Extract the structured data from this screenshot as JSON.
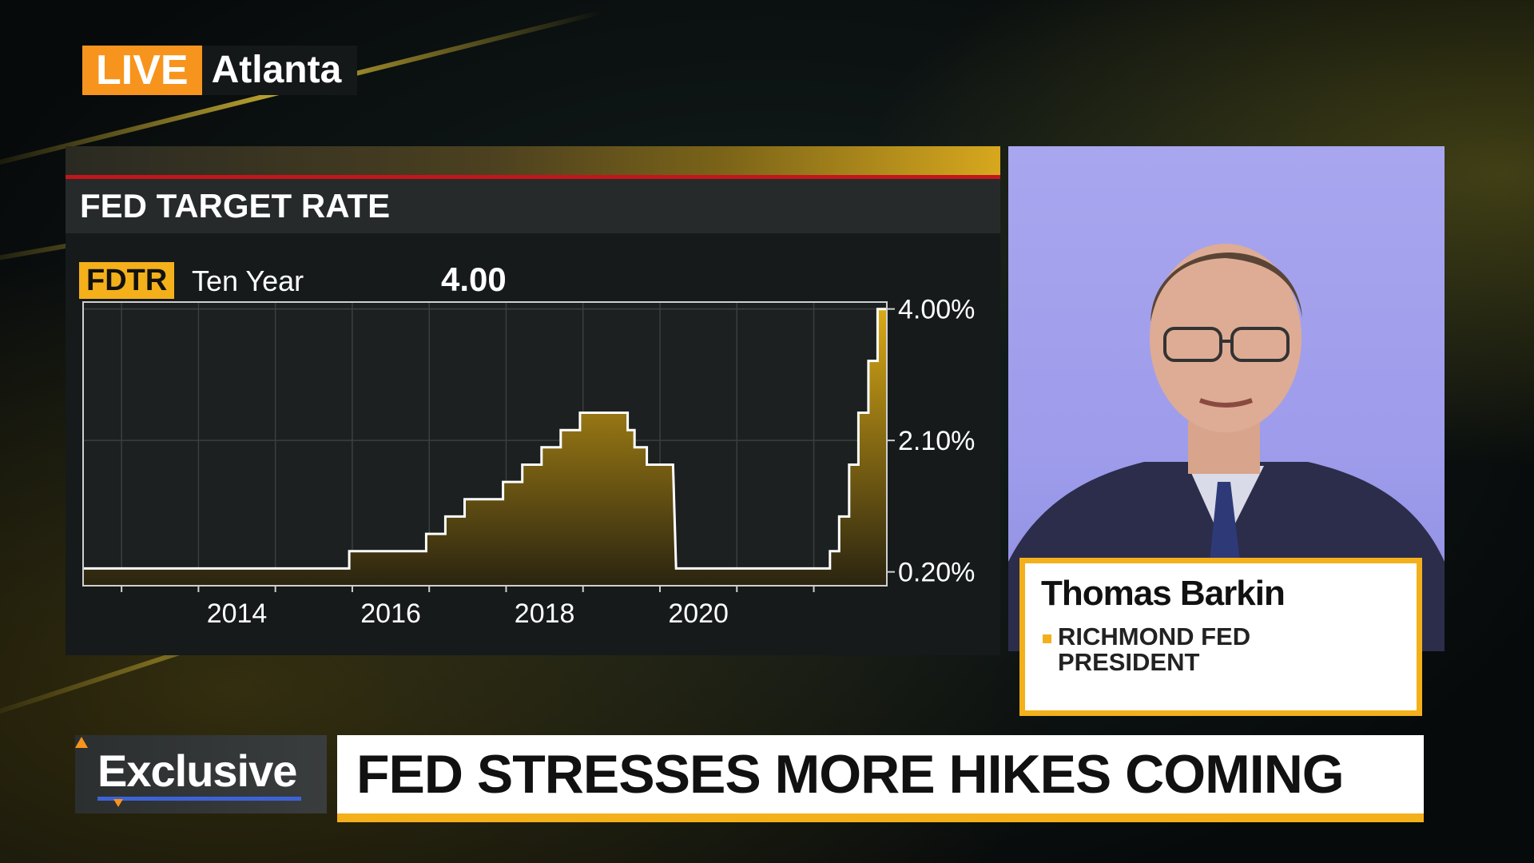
{
  "live": {
    "tag": "LIVE",
    "location": "Atlanta"
  },
  "panel": {
    "title": "FED TARGET RATE",
    "ticker": "FDTR",
    "ticker_label": "Ten Year",
    "current_value": "4.00"
  },
  "chart_data": {
    "type": "line",
    "style": "step-area",
    "title": "FED TARGET RATE",
    "x_tick_labels": [
      "2014",
      "2016",
      "2018",
      "2020"
    ],
    "y_tick_labels": [
      "4.00%",
      "2.10%",
      "0.20%"
    ],
    "y_ticks": [
      4.0,
      2.1,
      0.2
    ],
    "xlim": [
      2012.5,
      2022.95
    ],
    "ylim": [
      0.0,
      4.1
    ],
    "grid": true,
    "series": [
      {
        "color": "#d9a916",
        "points": [
          [
            2012.5,
            0.25
          ],
          [
            2015.96,
            0.25
          ],
          [
            2015.96,
            0.5
          ],
          [
            2016.96,
            0.5
          ],
          [
            2016.96,
            0.75
          ],
          [
            2017.21,
            0.75
          ],
          [
            2017.21,
            1.0
          ],
          [
            2017.46,
            1.0
          ],
          [
            2017.46,
            1.25
          ],
          [
            2017.96,
            1.25
          ],
          [
            2017.96,
            1.5
          ],
          [
            2018.21,
            1.5
          ],
          [
            2018.21,
            1.75
          ],
          [
            2018.46,
            1.75
          ],
          [
            2018.46,
            2.0
          ],
          [
            2018.71,
            2.0
          ],
          [
            2018.71,
            2.25
          ],
          [
            2018.96,
            2.25
          ],
          [
            2018.96,
            2.5
          ],
          [
            2019.58,
            2.5
          ],
          [
            2019.58,
            2.25
          ],
          [
            2019.67,
            2.25
          ],
          [
            2019.67,
            2.0
          ],
          [
            2019.83,
            2.0
          ],
          [
            2019.83,
            1.75
          ],
          [
            2020.17,
            1.75
          ],
          [
            2020.21,
            0.25
          ],
          [
            2022.21,
            0.25
          ],
          [
            2022.21,
            0.5
          ],
          [
            2022.33,
            0.5
          ],
          [
            2022.33,
            1.0
          ],
          [
            2022.46,
            1.0
          ],
          [
            2022.46,
            1.75
          ],
          [
            2022.58,
            1.75
          ],
          [
            2022.58,
            2.5
          ],
          [
            2022.71,
            2.5
          ],
          [
            2022.71,
            3.25
          ],
          [
            2022.83,
            3.25
          ],
          [
            2022.83,
            4.0
          ],
          [
            2022.95,
            4.0
          ]
        ]
      }
    ]
  },
  "guest": {
    "name": "Thomas Barkin",
    "title": "RICHMOND FED PRESIDENT"
  },
  "bottom": {
    "tag": "Exclusive",
    "headline": "FED STRESSES MORE HIKES COMING"
  },
  "colors": {
    "accent": "#f4b01a",
    "live": "#f7941d",
    "red_rule": "#c4151c"
  }
}
